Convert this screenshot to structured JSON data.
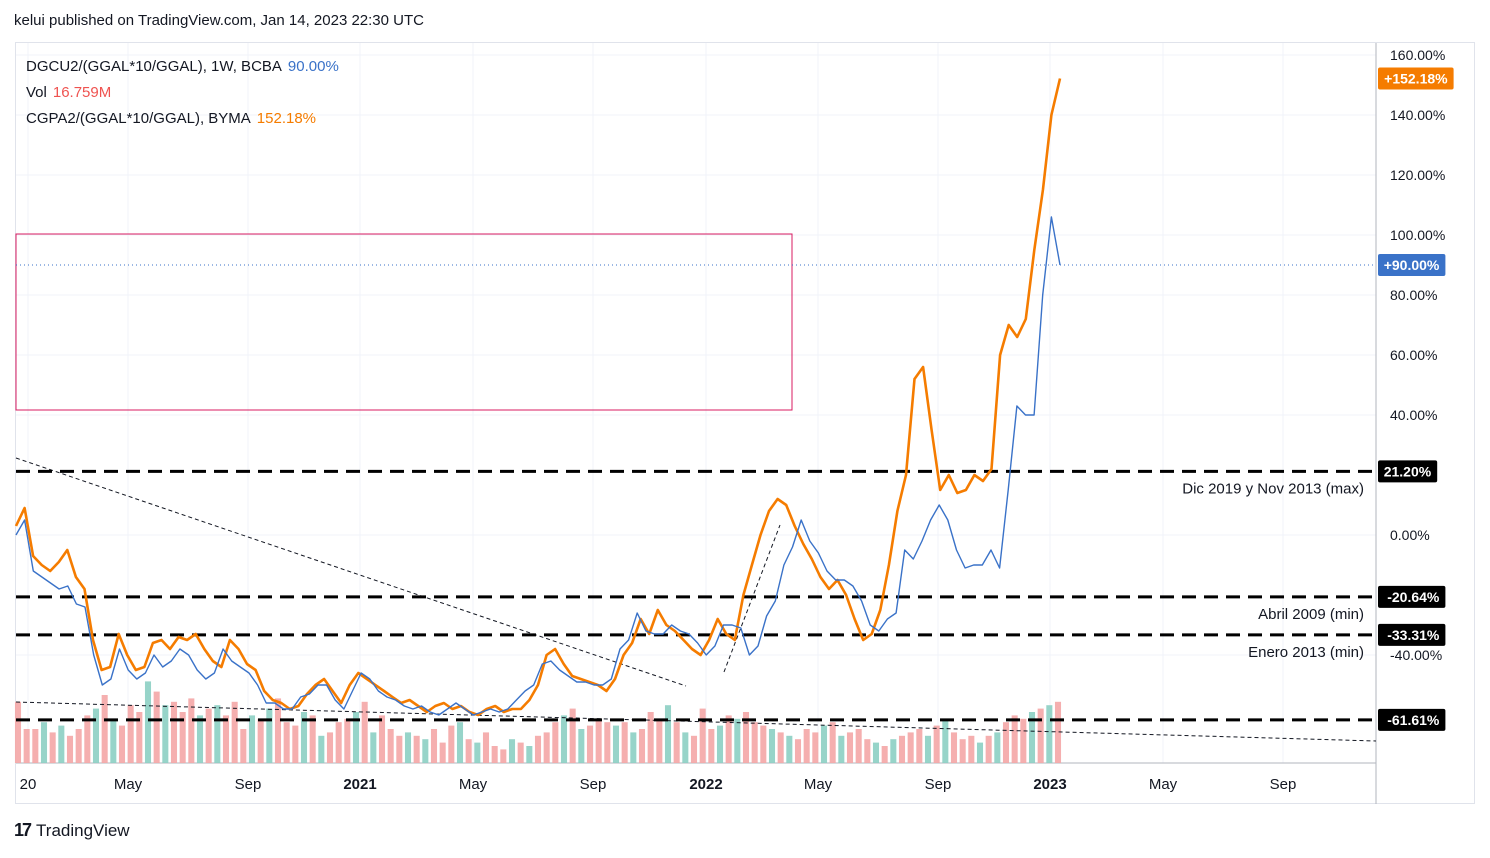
{
  "header": {
    "text": "kelui published on TradingView.com, Jan 14, 2023 22:30 UTC"
  },
  "legend": {
    "rows": [
      {
        "name": "DGCU2/(GGAL*10/GGAL), 1W, BCBA",
        "value": "90.00%",
        "color": "#3a72c8"
      },
      {
        "name": "Vol",
        "value": "16.759M",
        "color": "#ef5350"
      },
      {
        "name": "CGPA2/(GGAL*10/GGAL), BYMA",
        "value": "152.18%",
        "color": "#f57c00"
      }
    ]
  },
  "footer": {
    "brand": "TradingView",
    "logo_mark": "17"
  },
  "chart_data": {
    "type": "line",
    "y_axis": {
      "unit": "%",
      "range": [
        -72,
        162
      ],
      "ticks": [
        "160.00%",
        "140.00%",
        "120.00%",
        "100.00%",
        "80.00%",
        "60.00%",
        "40.00%",
        "0.00%",
        "-40.00%"
      ],
      "tick_values": [
        160,
        140,
        120,
        100,
        80,
        60,
        40,
        0,
        -40
      ]
    },
    "x_axis": {
      "labels": [
        "20",
        "May",
        "Sep",
        "2021",
        "May",
        "Sep",
        "2022",
        "May",
        "Sep",
        "2023",
        "May",
        "Sep"
      ],
      "bold": [
        "2021",
        "2022",
        "2023"
      ]
    },
    "price_badges": [
      {
        "label": "+152.18%",
        "value": 152.18,
        "color": "#f57c00"
      },
      {
        "label": "+90.00%",
        "value": 90.0,
        "color": "#3a72c8"
      },
      {
        "label": "21.20%",
        "value": 21.2,
        "color": "#000000"
      },
      {
        "label": "-20.64%",
        "value": -20.64,
        "color": "#000000"
      },
      {
        "label": "-33.31%",
        "value": -33.31,
        "color": "#000000"
      },
      {
        "label": "-61.61%",
        "value": -61.61,
        "color": "#000000"
      }
    ],
    "horizontal_levels": [
      {
        "value": 21.2,
        "label": "Dic 2019 y Nov 2013 (max)"
      },
      {
        "value": -20.64,
        "label": "Abril 2009 (min)"
      },
      {
        "value": -33.31,
        "label": "Enero 2013 (min)"
      },
      {
        "value": -61.61,
        "label": ""
      }
    ],
    "series": [
      {
        "name": "CGPA2/(GGAL*10/GGAL), BYMA",
        "color": "#f57c00",
        "values": [
          3,
          9,
          -7,
          -10,
          -12,
          -9,
          -5,
          -14,
          -18,
          -35,
          -45,
          -44,
          -33,
          -40,
          -45,
          -44,
          -36,
          -35,
          -38,
          -34,
          -35,
          -33,
          -38,
          -42,
          -44,
          -35,
          -38,
          -43,
          -45,
          -52,
          -55,
          -56,
          -58,
          -57,
          -53,
          -50,
          -48,
          -52,
          -56,
          -50,
          -46,
          -48,
          -50,
          -52,
          -54,
          -56,
          -55,
          -57,
          -59,
          -57,
          -56,
          -58,
          -57,
          -59,
          -60,
          -58,
          -57,
          -59,
          -58,
          -58,
          -55,
          -50,
          -40,
          -38,
          -43,
          -47,
          -48,
          -49,
          -50,
          -52,
          -48,
          -40,
          -36,
          -28,
          -33,
          -25,
          -30,
          -32,
          -35,
          -38,
          -40,
          -35,
          -28,
          -33,
          -35,
          -20,
          -10,
          0,
          8,
          12,
          10,
          3,
          -3,
          -8,
          -14,
          -18,
          -15,
          -20,
          -28,
          -35,
          -33,
          -25,
          -10,
          8,
          20,
          52,
          56,
          35,
          15,
          20,
          14,
          15,
          20,
          18,
          22,
          60,
          70,
          66,
          72,
          95,
          115,
          140,
          152.18
        ]
      },
      {
        "name": "DGCU2/(GGAL*10/GGAL), 1W, BCBA",
        "color": "#3a72c8",
        "values": [
          0,
          5,
          -12,
          -14,
          -16,
          -18,
          -17,
          -23,
          -24,
          -40,
          -50,
          -48,
          -38,
          -45,
          -48,
          -46,
          -40,
          -44,
          -42,
          -38,
          -40,
          -45,
          -48,
          -46,
          -38,
          -42,
          -44,
          -46,
          -50,
          -56,
          -56,
          -58,
          -58,
          -54,
          -53,
          -50,
          -50,
          -55,
          -58,
          -52,
          -46,
          -48,
          -52,
          -54,
          -55,
          -57,
          -58,
          -57,
          -59,
          -60,
          -58,
          -56,
          -58,
          -60,
          -59,
          -58,
          -59,
          -58,
          -55,
          -52,
          -50,
          -43,
          -42,
          -45,
          -47,
          -49,
          -49,
          -50,
          -50,
          -48,
          -38,
          -35,
          -26,
          -32,
          -33,
          -33,
          -30,
          -32,
          -33,
          -36,
          -40,
          -37,
          -30,
          -30,
          -31,
          -40,
          -37,
          -27,
          -22,
          -10,
          -4,
          5,
          -2,
          -6,
          -12,
          -15,
          -15,
          -17,
          -22,
          -30,
          -32,
          -28,
          -26,
          -5,
          -8,
          -2,
          5,
          10,
          5,
          -5,
          -11,
          -10,
          -10,
          -5,
          -11,
          15,
          43,
          40,
          40,
          80,
          106,
          90
        ]
      }
    ],
    "volume_bars": [
      18,
      10,
      10,
      12,
      9,
      11,
      8,
      10,
      14,
      16,
      20,
      13,
      11,
      17,
      15,
      24,
      21,
      17,
      18,
      15,
      19,
      14,
      16,
      17,
      14,
      18,
      10,
      14,
      13,
      16,
      19,
      12,
      11,
      15,
      14,
      8,
      9,
      12,
      13,
      15,
      18,
      9,
      14,
      10,
      8,
      9,
      8,
      7,
      10,
      6,
      11,
      12,
      7,
      6,
      9,
      5,
      4,
      7,
      6,
      5,
      8,
      9,
      12,
      14,
      16,
      10,
      11,
      13,
      12,
      11,
      12,
      9,
      10,
      15,
      13,
      17,
      12,
      9,
      8,
      16,
      10,
      11,
      14,
      13,
      15,
      12,
      11,
      10,
      9,
      8,
      7,
      10,
      9,
      11,
      12,
      8,
      9,
      10,
      7,
      6,
      5,
      7,
      8,
      9,
      10,
      8,
      11,
      13,
      9,
      7,
      8,
      6,
      8,
      9,
      12,
      14,
      13,
      15,
      16,
      17,
      18
    ],
    "volume_colors_note": "alternating teal (#4db6a0) up weeks and red (#ef9a9a) down weeks"
  }
}
